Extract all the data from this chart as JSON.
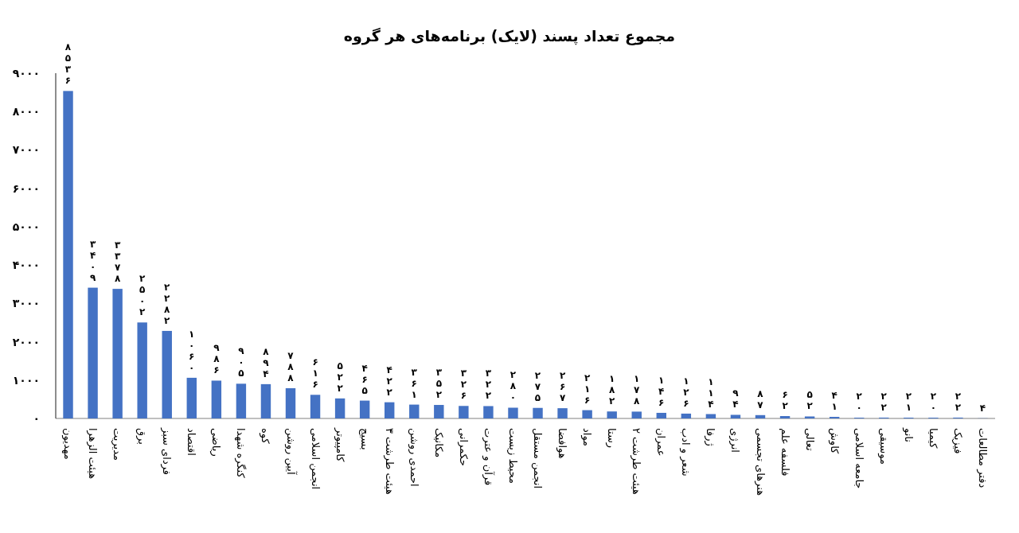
{
  "chart_data": {
    "type": "bar",
    "title": "مجموع تعداد پسند (لایک) برنامه‌های هر گروه",
    "categories": [
      "مهدیون",
      "هیئت الزهرا",
      "مدیریت",
      "برق",
      "فردای سبز",
      "اقتصاد",
      "ریاضی",
      "کنگره شهدا",
      "کوه",
      "آیین روشن",
      "انجمن اسلامی",
      "کامپیوتر",
      "بسیج",
      "هیئت طرشت ۳",
      "احمدی روشن",
      "مکانیک",
      "حکمرانی",
      "قرآن و عترت",
      "محیط زیست",
      "انجمن مستقل",
      "هوافضا",
      "مواد",
      "رستا",
      "هیئت طرشت ۲",
      "عمران",
      "شعر و ادب",
      "ژرفا",
      "انرژی",
      "هنرهای تجسمی",
      "فلسفه علم",
      "تعالی",
      "کاوش",
      "جامعه اسلامی",
      "موسیقی",
      "نانو",
      "کیمیا",
      "فیزیک",
      "دفتر مطالعات"
    ],
    "values": [
      8536,
      3409,
      3378,
      2502,
      2282,
      1060,
      986,
      905,
      894,
      788,
      616,
      522,
      465,
      422,
      361,
      352,
      326,
      322,
      280,
      275,
      267,
      216,
      182,
      178,
      146,
      126,
      114,
      94,
      87,
      62,
      52,
      41,
      20,
      22,
      21,
      20,
      22,
      4
    ],
    "value_labels": [
      "۸۵۳۶",
      "۳۴۰۹",
      "۳۳۷۸",
      "۲۵۰۲",
      "۲۲۸۲",
      "۱۰۶۰",
      "۹۸۶",
      "۹۰۵",
      "۸۹۴",
      "۷۸۸",
      "۶۱۶",
      "۵۲۲",
      "۴۶۵",
      "۴۲۲",
      "۳۶۱",
      "۳۵۲",
      "۳۲۶",
      "۳۲۲",
      "۲۸۰",
      "۲۷۵",
      "۲۶۷",
      "۲۱۶",
      "۱۸۲",
      "۱۷۸",
      "۱۴۶",
      "۱۲۶",
      "۱۱۴",
      "۹۴",
      "۸۷",
      "۶۲",
      "۵۲",
      "۴۱",
      "۲۰",
      "۲۲",
      "۲۱",
      "۲۰",
      "۲۲",
      "۴"
    ],
    "color": "#4472c4",
    "ylim": [
      0,
      9000
    ],
    "yticks": [
      {
        "value": 0,
        "label": "۰"
      },
      {
        "value": 1000,
        "label": "۱۰۰۰"
      },
      {
        "value": 2000,
        "label": "۲۰۰۰"
      },
      {
        "value": 3000,
        "label": "۳۰۰۰"
      },
      {
        "value": 4000,
        "label": "۴۰۰۰"
      },
      {
        "value": 5000,
        "label": "۵۰۰۰"
      },
      {
        "value": 6000,
        "label": "۶۰۰۰"
      },
      {
        "value": 7000,
        "label": "۷۰۰۰"
      },
      {
        "value": 8000,
        "label": "۸۰۰۰"
      },
      {
        "value": 9000,
        "label": "۹۰۰۰"
      }
    ]
  }
}
